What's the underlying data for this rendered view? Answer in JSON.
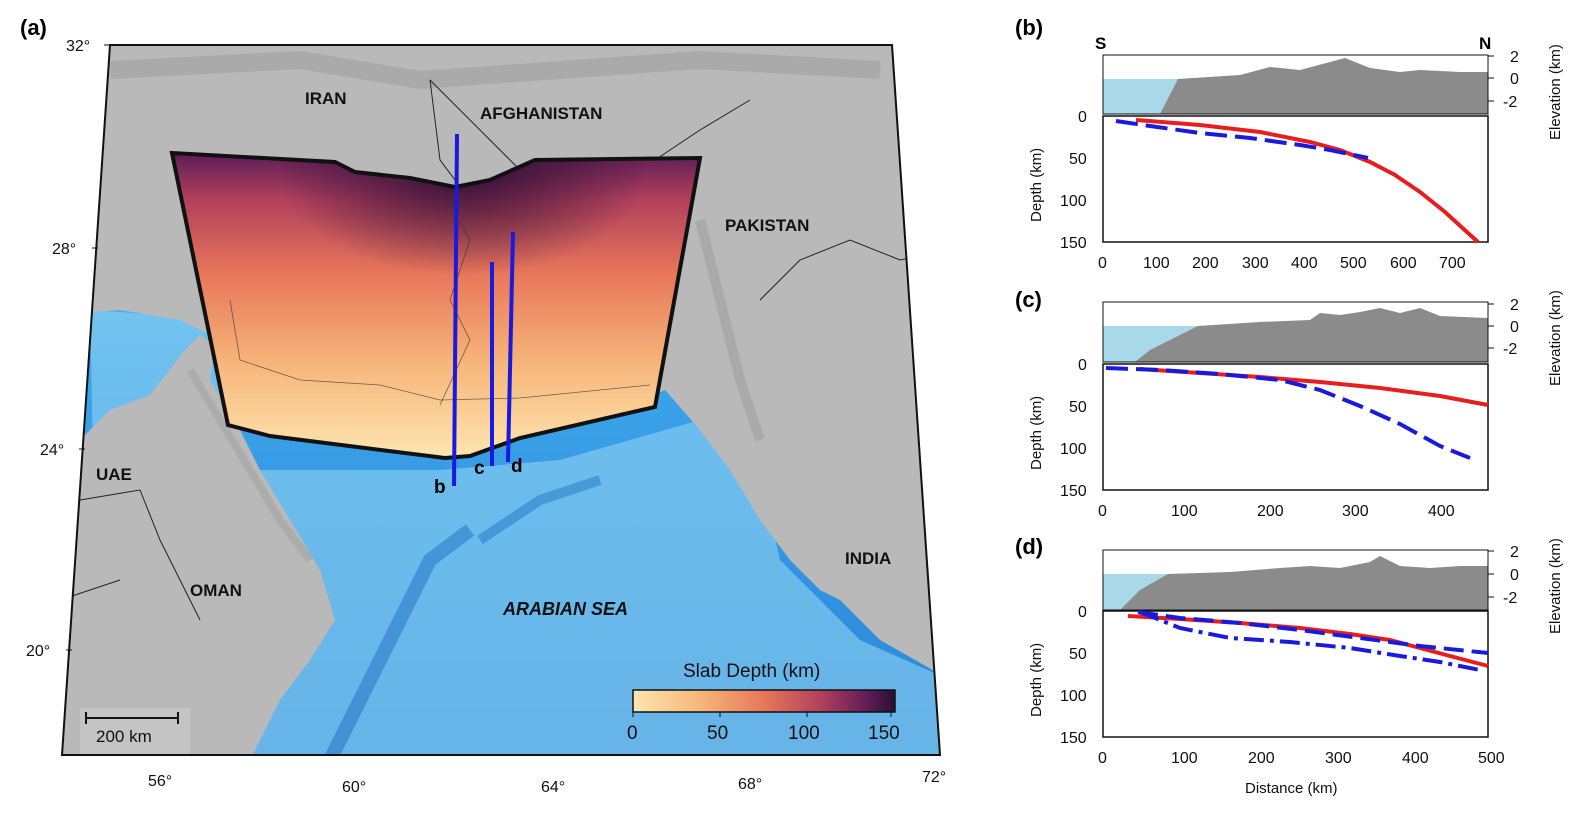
{
  "panels": {
    "a": "(a)",
    "b": "(b)",
    "c": "(c)",
    "d": "(d)"
  },
  "map": {
    "lat_ticks": [
      "32°",
      "28°",
      "24°",
      "20°"
    ],
    "lon_ticks": [
      "56°",
      "60°",
      "64°",
      "68°",
      "72°"
    ],
    "countries": {
      "iran": "IRAN",
      "afghanistan": "AFGHANISTAN",
      "pakistan": "PAKISTAN",
      "uae": "UAE",
      "oman": "OMAN",
      "india": "INDIA"
    },
    "sea": "ARABIAN SEA",
    "profiles": {
      "b": "b",
      "c": "c",
      "d": "d"
    },
    "scale_bar": "200 km",
    "colorbar": {
      "title": "Slab Depth (km)",
      "ticks": [
        "0",
        "50",
        "100",
        "150"
      ],
      "stops": [
        "#fde6b0",
        "#f7b77b",
        "#e8775a",
        "#b03f5c",
        "#5b1d56",
        "#2b0e33"
      ]
    },
    "colors": {
      "ocean_deep": "#2e8fe0",
      "ocean_shallow": "#bfe7f8",
      "land": "#b9b9b9",
      "profile": "#1a1adf",
      "slab": "#e81d1d"
    }
  },
  "profiles": {
    "b": {
      "compass_s": "S",
      "compass_n": "N",
      "elev_ticks": [
        "2",
        "0",
        "-2"
      ],
      "elev_label": "Elevation (km)",
      "depth_label": "Depth (km)",
      "depth_ticks": [
        "0",
        "50",
        "100",
        "150"
      ],
      "dist_ticks": [
        "0",
        "100",
        "200",
        "300",
        "400",
        "500",
        "600",
        "700"
      ],
      "x_max": 780
    },
    "c": {
      "elev_ticks": [
        "2",
        "0",
        "-2"
      ],
      "elev_label": "Elevation (km)",
      "depth_label": "Depth (km)",
      "depth_ticks": [
        "0",
        "50",
        "100",
        "150"
      ],
      "dist_ticks": [
        "0",
        "100",
        "200",
        "300",
        "400"
      ],
      "x_max": 450
    },
    "d": {
      "elev_ticks": [
        "2",
        "0",
        "-2"
      ],
      "elev_label": "Elevation (km)",
      "depth_label": "Depth (km)",
      "depth_ticks": [
        "0",
        "50",
        "100",
        "150"
      ],
      "dist_ticks": [
        "0",
        "100",
        "200",
        "300",
        "400",
        "500"
      ],
      "dist_label": "Distance (km)",
      "x_max": 500
    }
  }
}
